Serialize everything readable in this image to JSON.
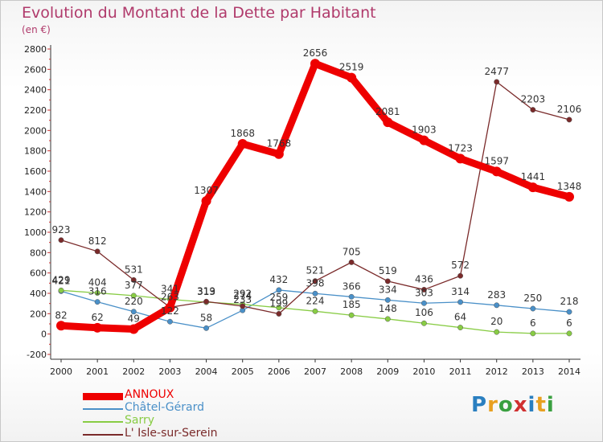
{
  "title": "Evolution du Montant de la Dette par Habitant",
  "unit": "(en €)",
  "logo": "Proxiti",
  "chart_data": {
    "type": "line",
    "x": [
      "2000",
      "2001",
      "2002",
      "2003",
      "2004",
      "2005",
      "2006",
      "2007",
      "2008",
      "2009",
      "2010",
      "2011",
      "2012",
      "2013",
      "2014"
    ],
    "ylim": [
      -200,
      2800
    ],
    "yticks": [
      -200,
      0,
      200,
      400,
      600,
      800,
      1000,
      1200,
      1400,
      1600,
      1800,
      2000,
      2200,
      2400,
      2600,
      2800
    ],
    "grid": false,
    "legend_position": "bottom-left",
    "series": [
      {
        "name": "ANNOUX",
        "color": "#ee0000",
        "values": [
          82,
          62,
          49,
          260,
          1307,
          1868,
          1768,
          2656,
          2519,
          2081,
          1903,
          1723,
          1597,
          1441,
          1348
        ],
        "labels": [
          "82",
          "62",
          "49",
          "",
          "1307",
          "1868",
          "1768",
          "2656",
          "2519",
          "2081",
          "1903",
          "1723",
          "1597",
          "1441",
          "1348"
        ]
      },
      {
        "name": "Châtel-Gérard",
        "color": "#4a90c8",
        "values": [
          421,
          316,
          220,
          122,
          58,
          233,
          432,
          398,
          366,
          334,
          303,
          314,
          283,
          250,
          218
        ],
        "labels": [
          "421",
          "316",
          "220",
          "122",
          "58",
          "233",
          "432",
          "398",
          "366",
          "334",
          "303",
          "314",
          "283",
          "250",
          "218"
        ]
      },
      {
        "name": "Sarry",
        "color": "#88cc44",
        "values": [
          429,
          404,
          377,
          341,
          313,
          292,
          259,
          224,
          185,
          148,
          106,
          64,
          20,
          6,
          6
        ],
        "labels": [
          "429",
          "404",
          "377",
          "341",
          "313",
          "292",
          "259",
          "224",
          "185",
          "148",
          "106",
          "64",
          "20",
          "6",
          "6"
        ]
      },
      {
        "name": "L' Isle-sur-Serein",
        "color": "#7a2a2a",
        "values": [
          923,
          812,
          531,
          263,
          319,
          274,
          199,
          521,
          705,
          519,
          436,
          572,
          2477,
          2203,
          2106
        ],
        "labels": [
          "923",
          "812",
          "531",
          "263",
          "319",
          "274",
          "199",
          "521",
          "705",
          "519",
          "436",
          "572",
          "2477",
          "2203",
          "2106"
        ]
      }
    ]
  }
}
